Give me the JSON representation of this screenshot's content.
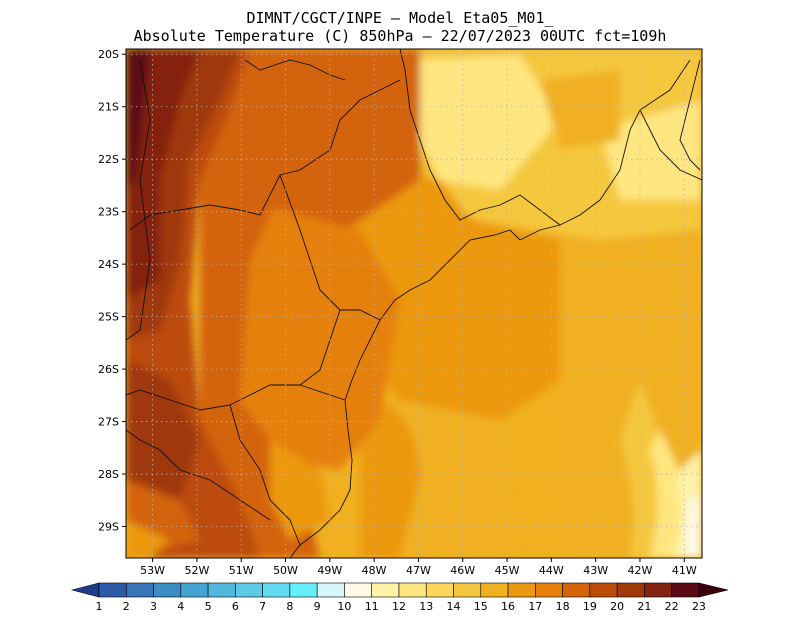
{
  "header": {
    "line1": "DIMNT/CGCT/INPE —  Model Eta05_M01_",
    "line2": "Absolute Temperature (C) 850hPa —  22/07/2023 00UTC fct=109h"
  },
  "map": {
    "lat_labels": [
      "20S",
      "21S",
      "22S",
      "23S",
      "24S",
      "25S",
      "26S",
      "27S",
      "28S",
      "29S"
    ],
    "lon_labels": [
      "53W",
      "52W",
      "51W",
      "50W",
      "49W",
      "48W",
      "47W",
      "46W",
      "45W",
      "44W",
      "43W",
      "42W",
      "41W"
    ],
    "lat_range": [
      -29.6,
      -19.9
    ],
    "lon_range": [
      -53.6,
      -40.6
    ],
    "gridlines": true
  },
  "colorbar": {
    "labels": [
      "1",
      "2",
      "3",
      "4",
      "5",
      "6",
      "7",
      "8",
      "9",
      "10",
      "11",
      "12",
      "13",
      "14",
      "15",
      "16",
      "17",
      "18",
      "19",
      "20",
      "21",
      "22",
      "23"
    ],
    "colors": [
      "#1e3c8c",
      "#2b5aa6",
      "#3575b8",
      "#3b8dc4",
      "#44a3d0",
      "#4fb8dc",
      "#5cc9e6",
      "#62dcf0",
      "#66f0fa",
      "#d4f6fc",
      "#fff8e6",
      "#fff3a8",
      "#ffe680",
      "#fbd85c",
      "#f5c73e",
      "#f0b020",
      "#ec9810",
      "#e6800a",
      "#d46408",
      "#bc4c08",
      "#a03808",
      "#842410",
      "#5c0a14",
      "#3c0008"
    ]
  }
}
